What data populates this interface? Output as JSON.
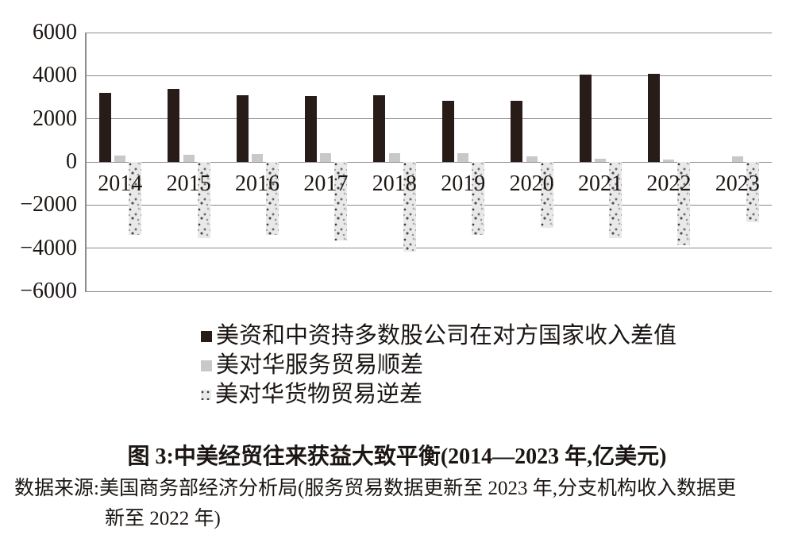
{
  "figure": {
    "title": "图 3:中美经贸往来获益大致平衡(2014—2023 年,亿美元)",
    "source_lines": [
      "数据来源:美国商务部经济分析局(服务贸易数据更新至 2023 年,分支机构收入数据更",
      "新至 2022 年)"
    ]
  },
  "chart_data": {
    "type": "bar",
    "title": "图 3:中美经贸往来获益大致平衡(2014—2023 年,亿美元)",
    "unit": "亿美元",
    "categories": [
      "2014",
      "2015",
      "2016",
      "2017",
      "2018",
      "2019",
      "2020",
      "2021",
      "2022",
      "2023"
    ],
    "series": [
      {
        "name": "美资和中资持多数股公司在对方国家收入差值",
        "key": "income-differential",
        "style": "solid-black",
        "values": [
          3200,
          3400,
          3100,
          3050,
          3100,
          2850,
          2850,
          4050,
          4100,
          null
        ]
      },
      {
        "name": "美对华服务贸易顺差",
        "key": "services-surplus",
        "style": "light-gray",
        "values": [
          280,
          330,
          370,
          390,
          400,
          400,
          260,
          150,
          110,
          250
        ]
      },
      {
        "name": "美对华货物贸易逆差",
        "key": "goods-deficit",
        "style": "speckled",
        "values": [
          -3400,
          -3550,
          -3400,
          -3650,
          -4150,
          -3400,
          -3050,
          -3550,
          -3850,
          -2800
        ]
      }
    ],
    "ylim": [
      -6000,
      6000
    ],
    "yticks": [
      6000,
      4000,
      2000,
      0,
      -2000,
      -4000,
      -6000
    ],
    "ytick_labels": [
      "6000",
      "4000",
      "2000",
      "0",
      "−2000",
      "−4000",
      "−6000"
    ],
    "grid": "horizontal",
    "legend_position": "bottom-left"
  },
  "colors": {
    "bar_black": "#281c18",
    "bar_gray": "#c8c8c8",
    "speckle_base": "#e9e9e9",
    "grid": "#8c8c8c",
    "text": "#1b1613",
    "background": "#ffffff"
  }
}
